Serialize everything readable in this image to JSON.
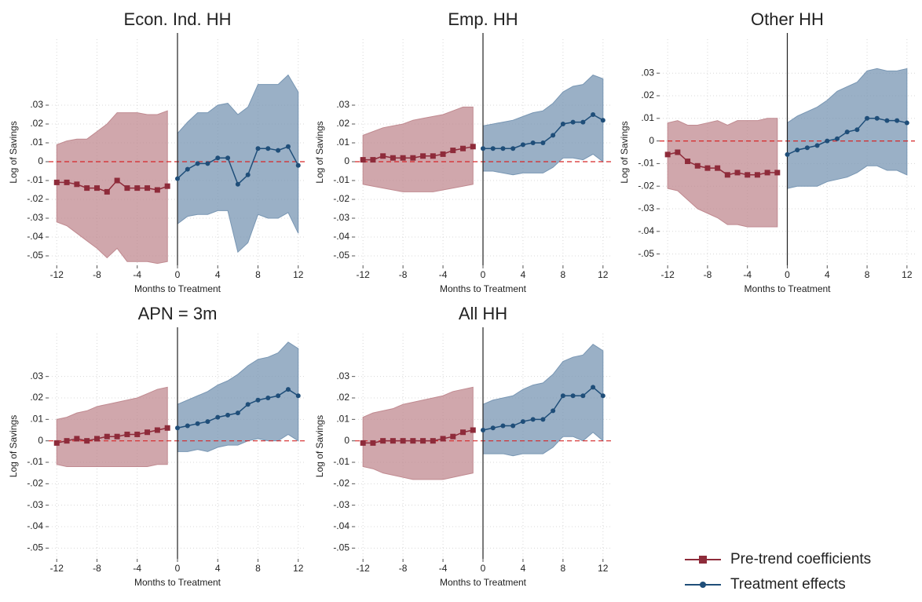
{
  "chart_data": [
    {
      "type": "line",
      "title": "Econ. Ind. HH",
      "x_label": "Months to Treatment",
      "y_label": "Log of Savings",
      "xlim": [
        -12.8,
        12.8
      ],
      "xticks": [
        -12,
        -8,
        -4,
        0,
        4,
        8,
        12
      ],
      "ylim": [
        -0.055,
        0.065
      ],
      "yticks": [
        {
          "value": 0.03,
          "label": ".03"
        },
        {
          "value": 0.02,
          "label": ".02"
        },
        {
          "value": 0.01,
          "label": ".01"
        },
        0,
        {
          "value": -0.01,
          "label": "-.01"
        },
        {
          "value": -0.02,
          "label": "-.02"
        },
        {
          "value": -0.03,
          "label": "-.03"
        },
        {
          "value": -0.04,
          "label": "-.04"
        },
        {
          "value": -0.05,
          "label": "-.05"
        }
      ],
      "grid": true,
      "series": [
        {
          "name": "Pre-trend coefficients",
          "color": "#8e2b3a",
          "band_color": "#c08a90",
          "marker": "square",
          "x": [
            -12,
            -11,
            -10,
            -9,
            -8,
            -7,
            -6,
            -5,
            -4,
            -3,
            -2,
            -1
          ],
          "values": [
            -0.011,
            -0.011,
            -0.012,
            -0.014,
            -0.014,
            -0.016,
            -0.01,
            -0.014,
            -0.014,
            -0.014,
            -0.015,
            -0.013
          ],
          "upper": [
            0.009,
            0.011,
            0.012,
            0.012,
            0.016,
            0.02,
            0.026,
            0.026,
            0.026,
            0.025,
            0.025,
            0.027
          ],
          "lower": [
            -0.032,
            -0.034,
            -0.038,
            -0.042,
            -0.046,
            -0.051,
            -0.046,
            -0.053,
            -0.053,
            -0.053,
            -0.054,
            -0.053
          ]
        },
        {
          "name": "Treatment effects",
          "color": "#1f4e79",
          "band_color": "#7896b3",
          "marker": "circle",
          "x": [
            0,
            1,
            2,
            3,
            4,
            5,
            6,
            7,
            8,
            9,
            10,
            11,
            12
          ],
          "values": [
            -0.009,
            -0.004,
            -0.001,
            -0.001,
            0.002,
            0.002,
            -0.012,
            -0.007,
            0.007,
            0.007,
            0.006,
            0.008,
            -0.002
          ],
          "upper": [
            0.015,
            0.021,
            0.026,
            0.026,
            0.03,
            0.031,
            0.025,
            0.029,
            0.041,
            0.041,
            0.041,
            0.046,
            0.037
          ],
          "lower": [
            -0.033,
            -0.029,
            -0.028,
            -0.028,
            -0.026,
            -0.026,
            -0.048,
            -0.043,
            -0.028,
            -0.03,
            -0.03,
            -0.027,
            -0.038
          ]
        }
      ]
    },
    {
      "type": "line",
      "title": "Emp. HH",
      "x_label": "Months to Treatment",
      "y_label": "Log of Savings",
      "xlim": [
        -12.8,
        12.8
      ],
      "xticks": [
        -12,
        -8,
        -4,
        0,
        4,
        8,
        12
      ],
      "ylim": [
        -0.055,
        0.065
      ],
      "yticks": [
        {
          "value": 0.03,
          "label": ".03"
        },
        {
          "value": 0.02,
          "label": ".02"
        },
        {
          "value": 0.01,
          "label": ".01"
        },
        0,
        {
          "value": -0.01,
          "label": "-.01"
        },
        {
          "value": -0.02,
          "label": "-.02"
        },
        {
          "value": -0.03,
          "label": "-.03"
        },
        {
          "value": -0.04,
          "label": "-.04"
        },
        {
          "value": -0.05,
          "label": "-.05"
        }
      ],
      "grid": true,
      "series": [
        {
          "name": "Pre-trend coefficients",
          "color": "#8e2b3a",
          "band_color": "#c08a90",
          "marker": "square",
          "x": [
            -12,
            -11,
            -10,
            -9,
            -8,
            -7,
            -6,
            -5,
            -4,
            -3,
            -2,
            -1
          ],
          "values": [
            0.001,
            0.001,
            0.003,
            0.002,
            0.002,
            0.002,
            0.003,
            0.003,
            0.004,
            0.006,
            0.007,
            0.008
          ],
          "upper": [
            0.014,
            0.016,
            0.018,
            0.019,
            0.02,
            0.022,
            0.023,
            0.024,
            0.025,
            0.027,
            0.029,
            0.029
          ],
          "lower": [
            -0.012,
            -0.013,
            -0.014,
            -0.015,
            -0.016,
            -0.016,
            -0.016,
            -0.016,
            -0.015,
            -0.014,
            -0.013,
            -0.012
          ]
        },
        {
          "name": "Treatment effects",
          "color": "#1f4e79",
          "band_color": "#7896b3",
          "marker": "circle",
          "x": [
            0,
            1,
            2,
            3,
            4,
            5,
            6,
            7,
            8,
            9,
            10,
            11,
            12
          ],
          "values": [
            0.007,
            0.007,
            0.007,
            0.007,
            0.009,
            0.01,
            0.01,
            0.014,
            0.02,
            0.021,
            0.021,
            0.025,
            0.022
          ],
          "upper": [
            0.019,
            0.02,
            0.021,
            0.022,
            0.024,
            0.026,
            0.027,
            0.031,
            0.037,
            0.04,
            0.041,
            0.046,
            0.044
          ],
          "lower": [
            -0.005,
            -0.005,
            -0.006,
            -0.007,
            -0.006,
            -0.006,
            -0.006,
            -0.003,
            0.002,
            0.002,
            0.001,
            0.004,
            0.0
          ]
        }
      ]
    },
    {
      "type": "line",
      "title": "Other HH",
      "x_label": "Months to Treatment",
      "y_label": "Log of Savings",
      "xlim": [
        -12.8,
        12.8
      ],
      "xticks": [
        -12,
        -8,
        -4,
        0,
        4,
        8,
        12
      ],
      "ylim": [
        -0.055,
        0.045
      ],
      "yticks": [
        {
          "value": 0.03,
          "label": ".03"
        },
        {
          "value": 0.02,
          "label": ".02"
        },
        {
          "value": 0.01,
          "label": ".01"
        },
        0,
        {
          "value": -0.01,
          "label": "-.01"
        },
        {
          "value": -0.02,
          "label": "-.02"
        },
        {
          "value": -0.03,
          "label": "-.03"
        },
        {
          "value": -0.04,
          "label": "-.04"
        },
        {
          "value": -0.05,
          "label": "-.05"
        }
      ],
      "grid": true,
      "series": [
        {
          "name": "Pre-trend coefficients",
          "color": "#8e2b3a",
          "band_color": "#c08a90",
          "marker": "square",
          "x": [
            -12,
            -11,
            -10,
            -9,
            -8,
            -7,
            -6,
            -5,
            -4,
            -3,
            -2,
            -1
          ],
          "values": [
            -0.006,
            -0.005,
            -0.009,
            -0.011,
            -0.012,
            -0.012,
            -0.015,
            -0.014,
            -0.015,
            -0.015,
            -0.014,
            -0.014
          ],
          "upper": [
            0.008,
            0.009,
            0.007,
            0.007,
            0.008,
            0.009,
            0.007,
            0.009,
            0.009,
            0.009,
            0.01,
            0.01
          ],
          "lower": [
            -0.021,
            -0.022,
            -0.026,
            -0.03,
            -0.032,
            -0.034,
            -0.037,
            -0.037,
            -0.038,
            -0.038,
            -0.038,
            -0.038
          ]
        },
        {
          "name": "Treatment effects",
          "color": "#1f4e79",
          "band_color": "#7896b3",
          "marker": "circle",
          "x": [
            0,
            1,
            2,
            3,
            4,
            5,
            6,
            7,
            8,
            9,
            10,
            11,
            12
          ],
          "values": [
            -0.006,
            -0.004,
            -0.003,
            -0.002,
            0.0,
            0.001,
            0.004,
            0.005,
            0.01,
            0.01,
            0.009,
            0.009,
            0.008
          ],
          "upper": [
            0.008,
            0.011,
            0.013,
            0.015,
            0.018,
            0.022,
            0.024,
            0.026,
            0.031,
            0.032,
            0.031,
            0.031,
            0.032
          ],
          "lower": [
            -0.021,
            -0.02,
            -0.02,
            -0.02,
            -0.018,
            -0.017,
            -0.016,
            -0.014,
            -0.011,
            -0.011,
            -0.013,
            -0.013,
            -0.015
          ]
        }
      ]
    },
    {
      "type": "line",
      "title": "APN = 3m",
      "x_label": "Months to Treatment",
      "y_label": "Log of Savings",
      "xlim": [
        -12.8,
        12.8
      ],
      "xticks": [
        -12,
        -8,
        -4,
        0,
        4,
        8,
        12
      ],
      "ylim": [
        -0.055,
        0.05
      ],
      "yticks": [
        {
          "value": 0.03,
          "label": ".03"
        },
        {
          "value": 0.02,
          "label": ".02"
        },
        {
          "value": 0.01,
          "label": ".01"
        },
        0,
        {
          "value": -0.01,
          "label": "-.01"
        },
        {
          "value": -0.02,
          "label": "-.02"
        },
        {
          "value": -0.03,
          "label": "-.03"
        },
        {
          "value": -0.04,
          "label": "-.04"
        },
        {
          "value": -0.05,
          "label": "-.05"
        }
      ],
      "grid": true,
      "series": [
        {
          "name": "Pre-trend coefficients",
          "color": "#8e2b3a",
          "band_color": "#c08a90",
          "marker": "square",
          "x": [
            -12,
            -11,
            -10,
            -9,
            -8,
            -7,
            -6,
            -5,
            -4,
            -3,
            -2,
            -1
          ],
          "values": [
            -0.001,
            0.0,
            0.001,
            0.0,
            0.001,
            0.002,
            0.002,
            0.003,
            0.003,
            0.004,
            0.005,
            0.006
          ],
          "upper": [
            0.01,
            0.011,
            0.013,
            0.014,
            0.016,
            0.017,
            0.018,
            0.019,
            0.02,
            0.022,
            0.024,
            0.025
          ],
          "lower": [
            -0.011,
            -0.012,
            -0.012,
            -0.012,
            -0.012,
            -0.012,
            -0.012,
            -0.012,
            -0.012,
            -0.012,
            -0.011,
            -0.011
          ]
        },
        {
          "name": "Treatment effects",
          "color": "#1f4e79",
          "band_color": "#7896b3",
          "marker": "circle",
          "x": [
            0,
            1,
            2,
            3,
            4,
            5,
            6,
            7,
            8,
            9,
            10,
            11,
            12
          ],
          "values": [
            0.006,
            0.007,
            0.008,
            0.009,
            0.011,
            0.012,
            0.013,
            0.017,
            0.019,
            0.02,
            0.021,
            0.024,
            0.021
          ],
          "upper": [
            0.017,
            0.019,
            0.021,
            0.023,
            0.026,
            0.028,
            0.031,
            0.035,
            0.038,
            0.039,
            0.041,
            0.046,
            0.043
          ],
          "lower": [
            -0.005,
            -0.005,
            -0.004,
            -0.005,
            -0.003,
            -0.002,
            -0.002,
            0.0,
            0.001,
            0.0,
            0.0,
            0.003,
            0.0
          ]
        }
      ]
    },
    {
      "type": "line",
      "title": "All HH",
      "x_label": "Months to Treatment",
      "y_label": "Log of Savings",
      "xlim": [
        -12.8,
        12.8
      ],
      "xticks": [
        -12,
        -8,
        -4,
        0,
        4,
        8,
        12
      ],
      "ylim": [
        -0.055,
        0.05
      ],
      "yticks": [
        {
          "value": 0.03,
          "label": ".03"
        },
        {
          "value": 0.02,
          "label": ".02"
        },
        {
          "value": 0.01,
          "label": ".01"
        },
        0,
        {
          "value": -0.01,
          "label": "-.01"
        },
        {
          "value": -0.02,
          "label": "-.02"
        },
        {
          "value": -0.03,
          "label": "-.03"
        },
        {
          "value": -0.04,
          "label": "-.04"
        },
        {
          "value": -0.05,
          "label": "-.05"
        }
      ],
      "grid": true,
      "series": [
        {
          "name": "Pre-trend coefficients",
          "color": "#8e2b3a",
          "band_color": "#c08a90",
          "marker": "square",
          "x": [
            -12,
            -11,
            -10,
            -9,
            -8,
            -7,
            -6,
            -5,
            -4,
            -3,
            -2,
            -1
          ],
          "values": [
            -0.001,
            -0.001,
            0.0,
            0.0,
            0.0,
            0.0,
            0.0,
            0.0,
            0.001,
            0.002,
            0.004,
            0.005
          ],
          "upper": [
            0.011,
            0.013,
            0.014,
            0.015,
            0.017,
            0.018,
            0.019,
            0.02,
            0.021,
            0.023,
            0.024,
            0.025
          ],
          "lower": [
            -0.012,
            -0.013,
            -0.015,
            -0.016,
            -0.017,
            -0.018,
            -0.018,
            -0.018,
            -0.018,
            -0.017,
            -0.016,
            -0.015
          ]
        },
        {
          "name": "Treatment effects",
          "color": "#1f4e79",
          "band_color": "#7896b3",
          "marker": "circle",
          "x": [
            0,
            1,
            2,
            3,
            4,
            5,
            6,
            7,
            8,
            9,
            10,
            11,
            12
          ],
          "values": [
            0.005,
            0.006,
            0.007,
            0.007,
            0.009,
            0.01,
            0.01,
            0.014,
            0.021,
            0.021,
            0.021,
            0.025,
            0.021
          ],
          "upper": [
            0.017,
            0.019,
            0.02,
            0.021,
            0.024,
            0.026,
            0.027,
            0.031,
            0.037,
            0.039,
            0.04,
            0.045,
            0.042
          ],
          "lower": [
            -0.006,
            -0.006,
            -0.006,
            -0.007,
            -0.006,
            -0.006,
            -0.006,
            -0.003,
            0.002,
            0.002,
            0.0,
            0.004,
            0.0
          ]
        }
      ]
    }
  ]
}
